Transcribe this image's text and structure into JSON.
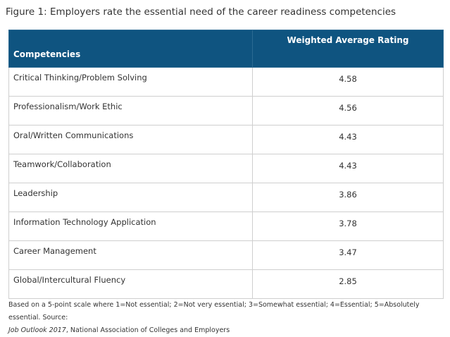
{
  "title": "Figure 1: Employers rate the essential need of the career readiness competencies",
  "table": {
    "headers": [
      "Competencies",
      "Weighted Average Rating"
    ],
    "rows": [
      {
        "name": "Critical Thinking/Problem Solving",
        "value": "4.58"
      },
      {
        "name": "Professionalism/Work Ethic",
        "value": "4.56"
      },
      {
        "name": "Oral/Written Communications",
        "value": "4.43"
      },
      {
        "name": "Teamwork/Collaboration",
        "value": "4.43"
      },
      {
        "name": "Leadership",
        "value": "3.86"
      },
      {
        "name": "Information Technology Application",
        "value": "3.78"
      },
      {
        "name": "Career Management",
        "value": "3.47"
      },
      {
        "name": "Global/Intercultural Fluency",
        "value": "2.85"
      }
    ]
  },
  "note": {
    "text": "Based on a 5-point scale where 1=Not essential; 2=Not very essential; 3=Somewhat essential; 4=Essential; 5=Absolutely essential. Source:",
    "source_title": "Job Outlook 2017",
    "source_rest": ", National Association of Colleges and Employers"
  },
  "colors": {
    "header_bg": "#0f5480",
    "header_text": "#ffffff",
    "border": "#cfcfcf"
  }
}
